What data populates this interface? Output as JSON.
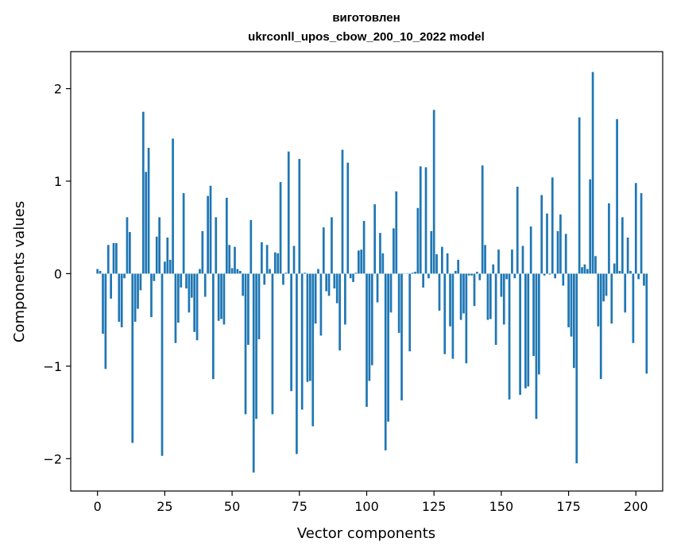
{
  "chart_data": {
    "type": "bar",
    "title_line1": "виготовлен",
    "title_line2": "ukrconll_upos_cbow_200_10_2022 model",
    "xlabel": "Vector components",
    "ylabel": "Components values",
    "xlim": [
      -9.95,
      209.95
    ],
    "ylim": [
      -2.35,
      2.4
    ],
    "xticks": [
      0,
      25,
      50,
      75,
      100,
      125,
      150,
      175,
      200
    ],
    "yticks": [
      -2,
      -1,
      0,
      1,
      2
    ],
    "ytick_labels": [
      "−2",
      "−1",
      "0",
      "1",
      "2"
    ],
    "bar_color": "#1f77b4",
    "bar_width": 0.8,
    "values": [
      0.05,
      0.03,
      -0.65,
      -1.03,
      0.31,
      -0.27,
      0.33,
      0.33,
      -0.52,
      -0.58,
      -0.05,
      0.61,
      0.45,
      -1.83,
      -0.52,
      -0.38,
      -0.18,
      1.75,
      1.1,
      1.36,
      -0.47,
      -0.08,
      0.4,
      0.61,
      -1.97,
      0.13,
      0.39,
      0.15,
      1.46,
      -0.75,
      -0.53,
      -0.15,
      0.87,
      -0.16,
      -0.42,
      -0.26,
      -0.63,
      -0.72,
      0.05,
      0.46,
      -0.25,
      0.84,
      0.95,
      -1.14,
      0.61,
      -0.51,
      -0.49,
      -0.55,
      0.82,
      0.31,
      0.06,
      0.29,
      0.05,
      0.03,
      -0.24,
      -1.52,
      -0.77,
      0.58,
      -2.15,
      -1.57,
      -0.71,
      0.34,
      -0.12,
      0.31,
      0.05,
      -1.52,
      0.23,
      0.22,
      0.99,
      -0.12,
      0.01,
      1.32,
      -1.27,
      0.3,
      -1.95,
      1.24,
      -1.47,
      0.01,
      -1.17,
      -1.16,
      -1.65,
      -0.54,
      0.05,
      -0.67,
      0.5,
      -0.19,
      -0.24,
      0.61,
      -0.16,
      -0.32,
      -0.83,
      1.34,
      -0.55,
      1.2,
      -0.05,
      -0.09,
      0.01,
      0.25,
      0.26,
      0.57,
      -1.44,
      -1.16,
      -0.99,
      0.75,
      -0.31,
      0.44,
      0.22,
      -1.91,
      -1.6,
      -0.42,
      0.49,
      0.89,
      -0.64,
      -1.37,
      0.0,
      0.0,
      -0.84,
      0.01,
      0.02,
      0.71,
      1.16,
      -0.15,
      1.15,
      -0.05,
      0.46,
      1.77,
      0.21,
      -0.4,
      0.29,
      -0.87,
      0.22,
      -0.57,
      -0.92,
      0.03,
      0.15,
      -0.5,
      -0.43,
      -0.97,
      -0.02,
      -0.02,
      -0.35,
      0.02,
      -0.07,
      1.17,
      0.31,
      -0.5,
      -0.49,
      0.1,
      -0.77,
      0.26,
      -0.25,
      -0.55,
      -0.06,
      -1.36,
      0.26,
      -0.05,
      0.94,
      -1.31,
      0.3,
      -1.24,
      -1.22,
      0.51,
      -0.89,
      -1.57,
      -1.09,
      0.85,
      -0.02,
      0.65,
      -0.01,
      1.04,
      -0.05,
      0.46,
      0.64,
      -0.13,
      0.43,
      -0.58,
      -0.68,
      -1.02,
      -2.05,
      1.69,
      0.07,
      0.1,
      0.05,
      1.02,
      2.18,
      0.19,
      -0.57,
      -1.14,
      -0.3,
      -0.24,
      0.76,
      -0.54,
      0.11,
      1.67,
      0.03,
      0.61,
      -0.42,
      0.39,
      0.03,
      -0.75,
      0.98,
      -0.06,
      0.87,
      -0.13,
      -1.08
    ]
  }
}
